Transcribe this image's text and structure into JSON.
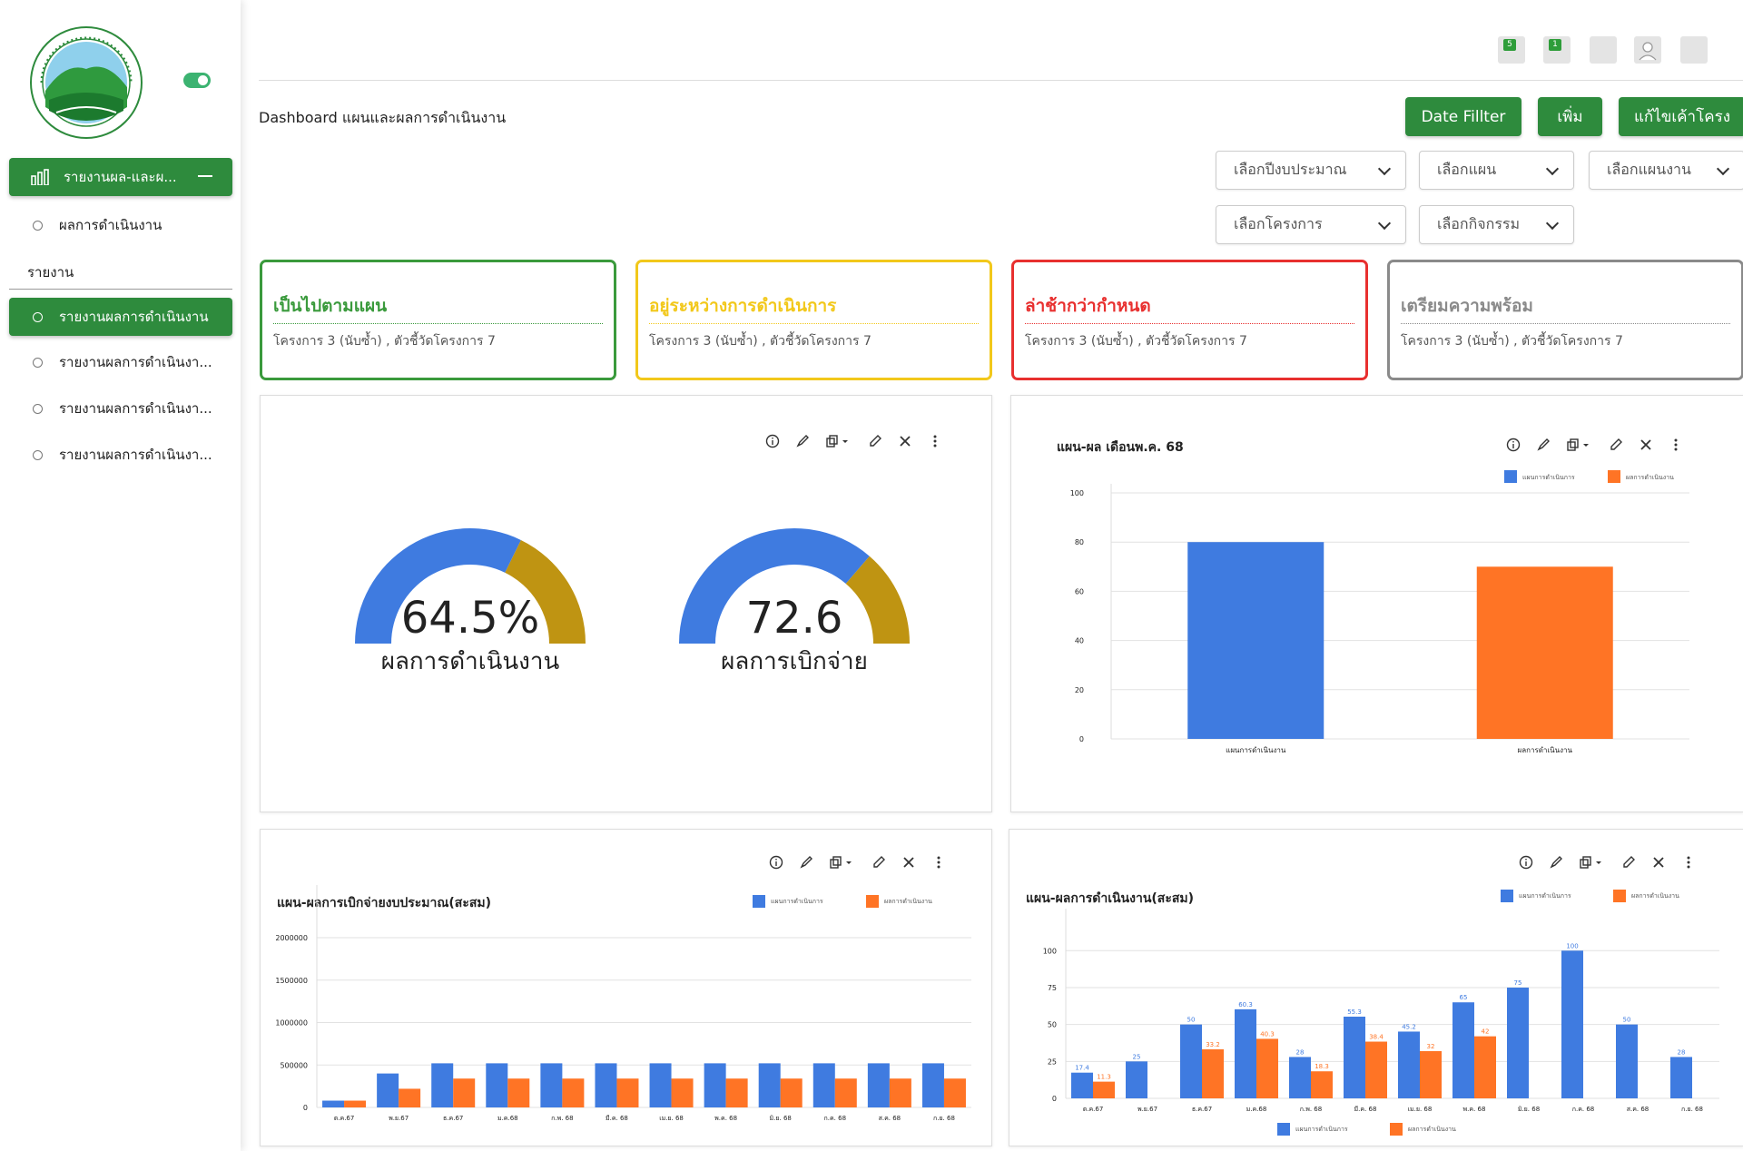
{
  "colors": {
    "green": "#2e8b3d",
    "blue": "#3f7be0",
    "orange": "#ff7425",
    "gold": "#bf9412",
    "yellow": "#f2c81b",
    "red": "#e8302f",
    "gray": "#8a8a8a"
  },
  "sidebar": {
    "group_label": "รายงานผล-และผ...",
    "sub_item": "ผลการดำเนินงาน",
    "section_label": "รายงาน",
    "items": [
      "รายงานผลการดำเนินงาน",
      "รายงานผลการดำเนินงา...",
      "รายงานผลการดำเนินงา...",
      "รายงานผลการดำเนินงา..."
    ]
  },
  "topbar": {
    "badges": [
      "5",
      "1"
    ],
    "icons": [
      "notification-icon",
      "message-icon",
      "blank-icon",
      "user-icon",
      "menu-icon"
    ]
  },
  "header": {
    "title": "Dashboard แผนและผลการดำเนินงาน",
    "buttons": [
      "Date Fillter",
      "เพิ่ม",
      "แก้ไขเค้าโครง"
    ]
  },
  "filters": [
    "เลือกปีงบประมาณ",
    "เลือกแผน",
    "เลือกแผนงาน",
    "เลือกโครงการ",
    "เลือกกิจกรรม"
  ],
  "status_cards": [
    {
      "title": "เป็นไปตามแผน",
      "subtitle": "โครงการ 3 (นับซ้ำ) , ตัวชี้วัดโครงการ 7",
      "color": "#3a9a3c"
    },
    {
      "title": "อยู่ระหว่างการดำเนินการ",
      "subtitle": "โครงการ 3 (นับซ้ำ) , ตัวชี้วัดโครงการ 7",
      "color": "#f2c81b"
    },
    {
      "title": "ล่าช้ากว่ากำหนด",
      "subtitle": "โครงการ 3 (นับซ้ำ) , ตัวชี้วัดโครงการ 7",
      "color": "#e8302f"
    },
    {
      "title": "เตรียมความพร้อม",
      "subtitle": "โครงการ 3 (นับซ้ำ) , ตัวชี้วัดโครงการ 7",
      "color": "#8a8a8a"
    }
  ],
  "gauges": [
    {
      "value_label": "64.5%",
      "value": 64.5,
      "max": 100,
      "caption": "ผลการดำเนินงาน"
    },
    {
      "value_label": "72.6",
      "value": 72.6,
      "max": 100,
      "caption": "ผลการเบิกจ่าย"
    }
  ],
  "chart_data": [
    {
      "type": "bar",
      "title": "แผน-ผล เดือนพ.ค. 68",
      "categories": [
        "แผนการดำเนินงาน",
        "ผลการดำเนินงาน"
      ],
      "values": [
        80,
        70
      ],
      "bar_colors": [
        "#3f7be0",
        "#ff7425"
      ],
      "legend": [
        "แผนการดำเนินการ",
        "ผลการดำเนินงาน"
      ],
      "legend_position": "top-right",
      "ylim": [
        0,
        100
      ],
      "yticks": [
        0,
        20,
        40,
        60,
        80,
        100
      ]
    },
    {
      "type": "bar",
      "title": "แผน-ผลการเบิกจ่ายงบประมาณ(สะสม)",
      "categories": [
        "ต.ค.67",
        "พ.ย.67",
        "ธ.ค.67",
        "ม.ค.68",
        "ก.พ. 68",
        "มี.ค. 68",
        "เม.ย. 68",
        "พ.ค. 68",
        "มิ.ย. 68",
        "ก.ค. 68",
        "ส.ค. 68",
        "ก.ย. 68"
      ],
      "series": [
        {
          "name": "แผนการดำเนินการ",
          "color": "#3f7be0",
          "values": [
            80000,
            400000,
            520000,
            520000,
            520000,
            520000,
            520000,
            520000,
            520000,
            520000,
            520000,
            520000
          ]
        },
        {
          "name": "ผลการดำเนินงาน",
          "color": "#ff7425",
          "values": [
            80000,
            220000,
            340000,
            340000,
            340000,
            340000,
            340000,
            340000,
            340000,
            340000,
            340000,
            340000
          ]
        }
      ],
      "legend_position": "top-right",
      "ylim": [
        0,
        2300000
      ],
      "yticks": [
        0,
        500000,
        1000000,
        1500000,
        2000000
      ]
    },
    {
      "type": "bar",
      "title": "แผน-ผลการดำเนินงาน(สะสม)",
      "categories": [
        "ต.ค.67",
        "พ.ย.67",
        "ธ.ค.67",
        "ม.ค.68",
        "ก.พ. 68",
        "มี.ค. 68",
        "เม.ย. 68",
        "พ.ค. 68",
        "มิ.ย. 68",
        "ก.ค. 68",
        "ส.ค. 68",
        "ก.ย. 68"
      ],
      "series": [
        {
          "name": "แผนการดำเนินการ",
          "color": "#3f7be0",
          "values": [
            17.4,
            25,
            50,
            60.3,
            28,
            55.3,
            45.2,
            65,
            75,
            100,
            50,
            28
          ]
        },
        {
          "name": "ผลการดำเนินงาน",
          "color": "#ff7425",
          "values": [
            11.3,
            null,
            33.2,
            40.3,
            18.3,
            38.4,
            32,
            42,
            null,
            null,
            null,
            null
          ]
        }
      ],
      "data_labels": {
        "plan": [
          "17.4",
          "25",
          "50",
          "60.3",
          "28",
          "55.3",
          "45.2",
          "65",
          "75",
          "100",
          "50",
          "28"
        ],
        "result": [
          "11.3",
          "",
          "33.2",
          "40.3",
          "18.3",
          "38.4",
          "32",
          "42",
          "",
          "",
          "",
          ""
        ]
      },
      "legend_position": "top-right and bottom",
      "ylim": [
        0,
        110
      ],
      "yticks": [
        0,
        25,
        50,
        75,
        100
      ]
    }
  ]
}
